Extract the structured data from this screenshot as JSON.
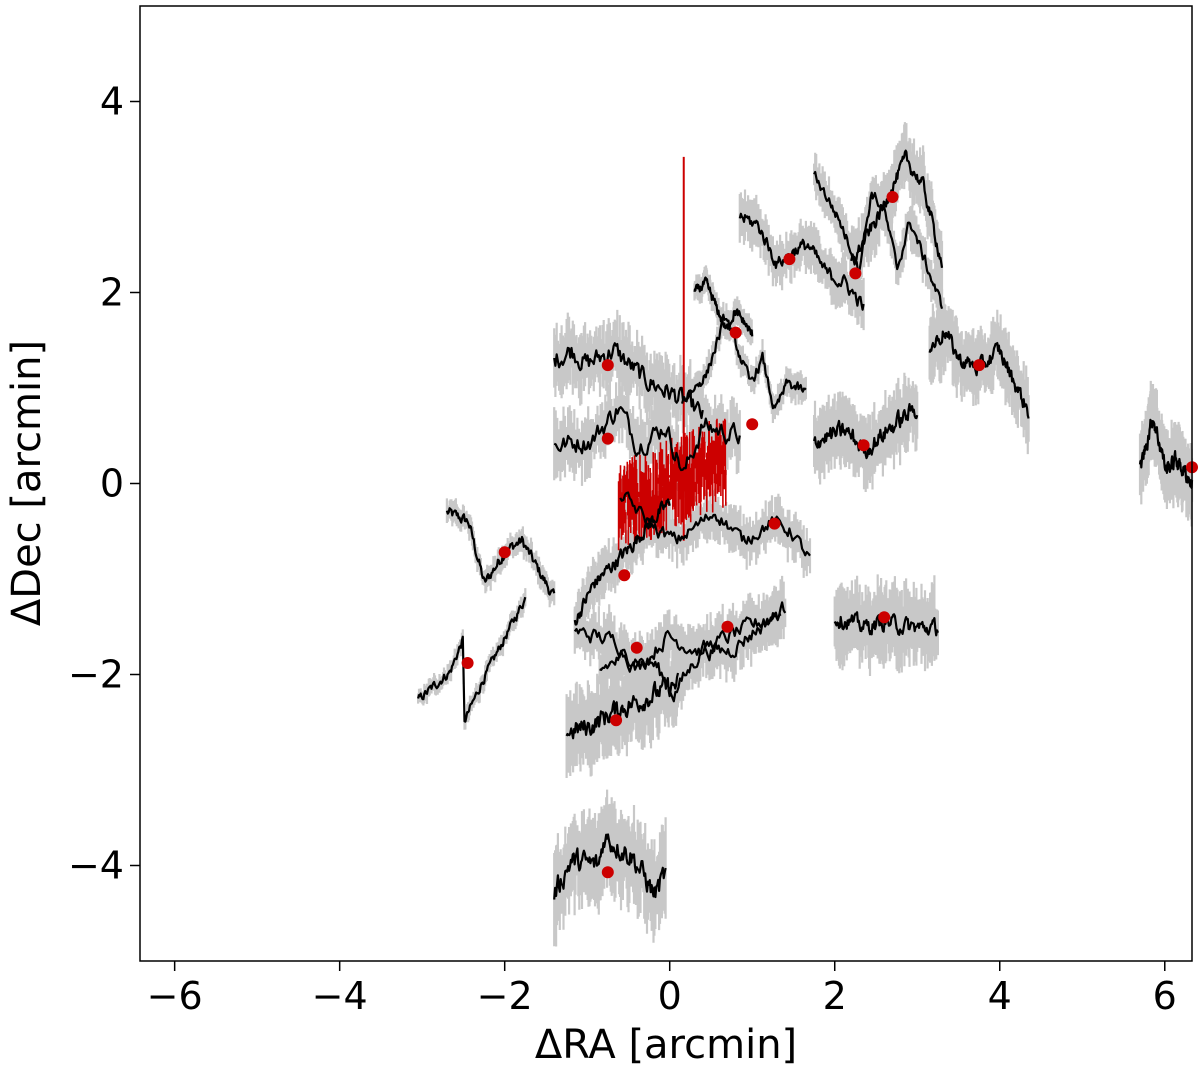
{
  "chart_data": {
    "type": "line",
    "xlabel": "ΔRA [arcmin]",
    "ylabel": "ΔDec [arcmin]",
    "xlim": [
      -6.42,
      6.33
    ],
    "ylim": [
      -5.0,
      5.0
    ],
    "xticks": [
      -6,
      -4,
      -2,
      0,
      2,
      4,
      6
    ],
    "xtick_labels": [
      "−6",
      "−4",
      "−2",
      "0",
      "2",
      "4",
      "6"
    ],
    "yticks": [
      -4,
      -2,
      0,
      2,
      4
    ],
    "ytick_labels": [
      "−4",
      "−2",
      "0",
      "2",
      "4"
    ],
    "grid": false,
    "colors": {
      "profile": "#000000",
      "band": "#c8c8c8",
      "center_point": "#cc0000",
      "highlight": "#cc0000"
    },
    "series": [
      {
        "x_start": -2.7,
        "x_end": -1.4,
        "y0": -0.3,
        "pattern": [
          [
            0,
            0
          ],
          [
            0.2,
            -0.1
          ],
          [
            0.35,
            -0.75
          ],
          [
            0.55,
            -0.4
          ],
          [
            0.7,
            -0.3
          ],
          [
            1.0,
            -0.9
          ]
        ],
        "noise": 0.05,
        "band": 0.1,
        "center": [
          -2.0,
          -0.72
        ]
      },
      {
        "x_start": -3.05,
        "x_end": -1.75,
        "y0": -2.27,
        "pattern": [
          [
            0,
            0
          ],
          [
            0.3,
            0.3
          ],
          [
            0.42,
            0.64
          ],
          [
            0.43,
            -0.23
          ],
          [
            0.6,
            0.2
          ],
          [
            1.0,
            1.07
          ]
        ],
        "noise": 0.04,
        "band": 0.08,
        "center": [
          -2.45,
          -1.88
        ]
      },
      {
        "x_start": -1.4,
        "x_end": 0.4,
        "y0": 1.3,
        "pattern": [
          [
            0,
            0
          ],
          [
            0.12,
            0.1
          ],
          [
            0.22,
            -0.05
          ],
          [
            0.4,
            0.1
          ],
          [
            0.6,
            -0.2
          ],
          [
            0.9,
            -0.45
          ],
          [
            1.0,
            -0.6
          ]
        ],
        "noise": 0.09,
        "band": 0.28,
        "center": [
          -0.75,
          1.24
        ]
      },
      {
        "x_start": -1.4,
        "x_end": 0.85,
        "y0": 0.4,
        "pattern": [
          [
            0,
            0
          ],
          [
            0.2,
            0.05
          ],
          [
            0.35,
            0.4
          ],
          [
            0.45,
            0.0
          ],
          [
            0.6,
            0.2
          ],
          [
            0.7,
            -0.3
          ],
          [
            0.8,
            0.2
          ],
          [
            1.0,
            0.1
          ]
        ],
        "noise": 0.09,
        "band": 0.28,
        "center": [
          -0.75,
          0.47
        ]
      },
      {
        "x_start": -1.15,
        "x_end": 0.0,
        "y0": -1.45,
        "pattern": [
          [
            0,
            0
          ],
          [
            0.2,
            0.4
          ],
          [
            0.4,
            0.6
          ],
          [
            0.6,
            0.8
          ],
          [
            0.8,
            1.05
          ],
          [
            1.0,
            1.25
          ]
        ],
        "noise": 0.06,
        "band": 0.2,
        "center": [
          -0.55,
          -0.96
        ]
      },
      {
        "x_start": -1.15,
        "x_end": 1.35,
        "y0": -1.55,
        "pattern": [
          [
            0,
            0
          ],
          [
            0.2,
            -0.1
          ],
          [
            0.3,
            -0.4
          ],
          [
            0.45,
            -0.05
          ],
          [
            0.6,
            -0.2
          ],
          [
            0.8,
            0.0
          ],
          [
            1.0,
            0.2
          ]
        ],
        "noise": 0.07,
        "band": 0.22,
        "center": [
          -0.4,
          -1.72
        ]
      },
      {
        "x_start": -0.85,
        "x_end": 1.4,
        "y0": -1.95,
        "pattern": [
          [
            0,
            0
          ],
          [
            0.15,
            0.15
          ],
          [
            0.3,
            0.05
          ],
          [
            0.4,
            -0.25
          ],
          [
            0.55,
            0.2
          ],
          [
            0.7,
            0.2
          ],
          [
            1.0,
            0.65
          ]
        ],
        "noise": 0.07,
        "band": 0.22,
        "center": [
          0.7,
          -1.5
        ]
      },
      {
        "x_start": -1.25,
        "x_end": 0.1,
        "y0": -2.6,
        "pattern": [
          [
            0,
            0
          ],
          [
            0.2,
            0.05
          ],
          [
            0.4,
            0.2
          ],
          [
            0.6,
            0.3
          ],
          [
            0.8,
            0.4
          ],
          [
            1.0,
            0.5
          ]
        ],
        "noise": 0.09,
        "band": 0.35,
        "center": [
          -0.65,
          -2.48
        ]
      },
      {
        "x_start": -1.4,
        "x_end": -0.05,
        "y0": -4.3,
        "pattern": [
          [
            0,
            0
          ],
          [
            0.15,
            0.35
          ],
          [
            0.4,
            0.3
          ],
          [
            0.45,
            0.6
          ],
          [
            0.7,
            0.4
          ],
          [
            0.9,
            0.0
          ],
          [
            1.0,
            0.2
          ]
        ],
        "noise": 0.1,
        "band": 0.38,
        "center": [
          -0.75,
          -4.07
        ]
      },
      {
        "x_start": -0.6,
        "x_end": 1.7,
        "y0": -0.1,
        "pattern": [
          [
            0,
            0
          ],
          [
            0.2,
            -0.4
          ],
          [
            0.3,
            -0.5
          ],
          [
            0.5,
            -0.2
          ],
          [
            0.65,
            -0.5
          ],
          [
            0.8,
            -0.3
          ],
          [
            0.9,
            -0.4
          ],
          [
            1.0,
            -0.7
          ]
        ],
        "noise": 0.06,
        "band": 0.2,
        "center": [
          1.27,
          -0.42
        ]
      },
      {
        "x_start": 0.3,
        "x_end": 1.0,
        "y0": 2.0,
        "pattern": [
          [
            0,
            0
          ],
          [
            0.2,
            0.1
          ],
          [
            0.55,
            -0.4
          ],
          [
            0.7,
            -0.2
          ],
          [
            0.85,
            -0.3
          ],
          [
            1.0,
            -0.45
          ]
        ],
        "noise": 0.04,
        "band": 0.1,
        "center": [
          0.8,
          1.58
        ]
      },
      {
        "x_start": 0.15,
        "x_end": 1.65,
        "y0": 0.85,
        "pattern": [
          [
            0,
            0
          ],
          [
            0.2,
            0.3
          ],
          [
            0.35,
            0.9
          ],
          [
            0.55,
            0.2
          ],
          [
            0.65,
            0.45
          ],
          [
            0.75,
            -0.1
          ],
          [
            0.85,
            0.2
          ],
          [
            1.0,
            0.1
          ]
        ],
        "noise": 0.05,
        "band": 0.12,
        "center": [
          1.0,
          0.62
        ]
      },
      {
        "x_start": 0.85,
        "x_end": 2.35,
        "y0": 2.8,
        "pattern": [
          [
            0,
            0
          ],
          [
            0.15,
            -0.1
          ],
          [
            0.3,
            -0.5
          ],
          [
            0.45,
            -0.35
          ],
          [
            0.55,
            -0.3
          ],
          [
            0.7,
            -0.6
          ],
          [
            0.85,
            -0.7
          ],
          [
            1.0,
            -0.95
          ]
        ],
        "noise": 0.06,
        "band": 0.2,
        "center": [
          1.45,
          2.35
        ]
      },
      {
        "x_start": 1.75,
        "x_end": 3.3,
        "y0": 3.25,
        "pattern": [
          [
            0,
            0
          ],
          [
            0.2,
            -0.5
          ],
          [
            0.35,
            -1.0
          ],
          [
            0.45,
            -0.2
          ],
          [
            0.55,
            -0.4
          ],
          [
            0.65,
            -1.0
          ],
          [
            0.75,
            -0.5
          ],
          [
            1.0,
            -1.4
          ]
        ],
        "noise": 0.05,
        "band": 0.18,
        "center": [
          2.25,
          2.2
        ]
      },
      {
        "x_start": 2.2,
        "x_end": 3.3,
        "y0": 2.3,
        "pattern": [
          [
            0,
            0
          ],
          [
            0.3,
            0.5
          ],
          [
            0.5,
            0.9
          ],
          [
            0.6,
            1.1
          ],
          [
            0.8,
            0.8
          ],
          [
            1.0,
            0.0
          ]
        ],
        "noise": 0.06,
        "band": 0.25,
        "center": [
          2.7,
          3.0
        ]
      },
      {
        "x_start": 1.75,
        "x_end": 3.0,
        "y0": 0.45,
        "pattern": [
          [
            0,
            0
          ],
          [
            0.3,
            0.1
          ],
          [
            0.5,
            -0.1
          ],
          [
            0.7,
            0.1
          ],
          [
            1.0,
            0.35
          ]
        ],
        "noise": 0.08,
        "band": 0.3,
        "center": [
          2.35,
          0.4
        ]
      },
      {
        "x_start": 2.0,
        "x_end": 3.25,
        "y0": -1.4,
        "pattern": [
          [
            0,
            0
          ],
          [
            0.3,
            -0.1
          ],
          [
            0.5,
            -0.05
          ],
          [
            0.7,
            -0.1
          ],
          [
            1.0,
            -0.12
          ]
        ],
        "noise": 0.07,
        "band": 0.32,
        "center": [
          2.6,
          -1.4
        ]
      },
      {
        "x_start": 3.15,
        "x_end": 4.35,
        "y0": 1.4,
        "pattern": [
          [
            0,
            0
          ],
          [
            0.15,
            0.2
          ],
          [
            0.3,
            -0.1
          ],
          [
            0.5,
            -0.2
          ],
          [
            0.7,
            0.0
          ],
          [
            1.0,
            -0.65
          ]
        ],
        "noise": 0.07,
        "band": 0.3,
        "center": [
          3.75,
          1.24
        ]
      },
      {
        "x_start": 5.7,
        "x_end": 6.33,
        "y0": 0.15,
        "pattern": [
          [
            0,
            0
          ],
          [
            0.25,
            0.55
          ],
          [
            0.5,
            0.0
          ],
          [
            0.7,
            0.1
          ],
          [
            1.0,
            -0.15
          ]
        ],
        "noise": 0.07,
        "band": 0.3,
        "center": [
          6.33,
          0.17
        ]
      }
    ],
    "highlight": {
      "x_start": -0.62,
      "x_end": 0.68,
      "y_start": -0.25,
      "y_end": 0.25,
      "noise": 0.28,
      "spike": {
        "x": 0.17,
        "y_top": 3.42,
        "y_bottom": -0.6
      }
    }
  }
}
